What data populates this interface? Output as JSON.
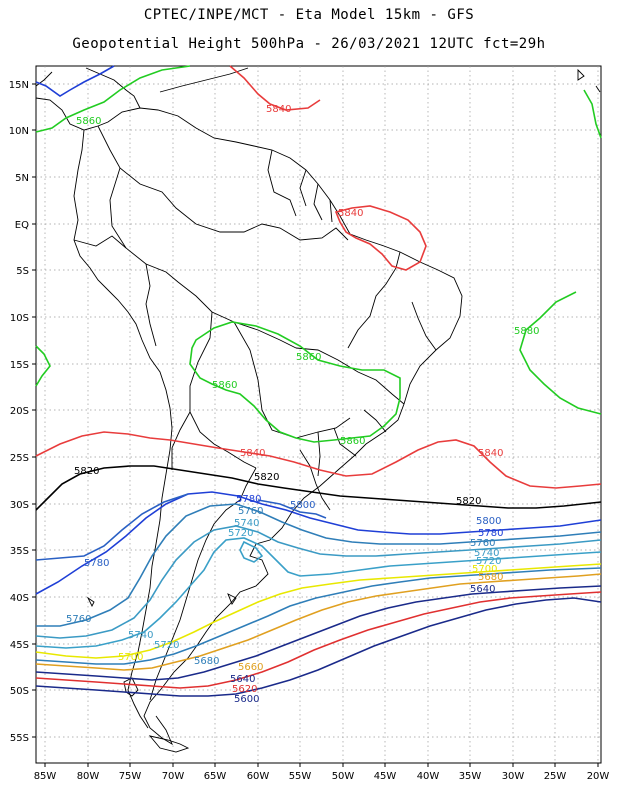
{
  "header": {
    "line1": "CPTEC/INPE/MCT -  Eta Model 15km - GFS",
    "line2": "Geopotential Height 500hPa - 26/03/2021 12UTC fct=29h"
  },
  "axes": {
    "lat_labels": [
      "15N",
      "10N",
      "5N",
      "EQ",
      "5S",
      "10S",
      "15S",
      "20S",
      "25S",
      "30S",
      "35S",
      "40S",
      "45S",
      "50S",
      "55S"
    ],
    "lon_labels": [
      "85W",
      "80W",
      "75W",
      "70W",
      "65W",
      "60W",
      "55W",
      "50W",
      "45W",
      "40W",
      "35W",
      "30W",
      "25W",
      "20W"
    ]
  },
  "colors": {
    "c5880": "#22cc22",
    "c5840": "#e83c3c",
    "c5820": "#000000",
    "c5800": "#1f3fd6",
    "c5780": "#2a60c4",
    "c5760": "#2f7eb8",
    "c5740": "#3b9ac4",
    "c5720": "#3aa0c8",
    "c5700": "#e8e800",
    "c5680": "#e0a020",
    "c5640": "#e03030",
    "c5600": "#1a2a8a"
  },
  "contour_labels": [
    {
      "id": "l5860a",
      "text": "5860",
      "color": "c5880"
    },
    {
      "id": "l5840a",
      "text": "5840",
      "color": "c5840"
    },
    {
      "id": "l5840b",
      "text": "5840",
      "color": "c5840"
    },
    {
      "id": "l5880a",
      "text": "5880",
      "color": "c5880"
    },
    {
      "id": "l5860b",
      "text": "5860",
      "color": "c5880"
    },
    {
      "id": "l5860c",
      "text": "5860",
      "color": "c5880"
    },
    {
      "id": "l5860d",
      "text": "5860",
      "color": "c5880"
    },
    {
      "id": "l5840c",
      "text": "5840",
      "color": "c5840"
    },
    {
      "id": "l5840d",
      "text": "5840",
      "color": "c5840"
    },
    {
      "id": "l5820a",
      "text": "5820",
      "color": "c5820"
    },
    {
      "id": "l5820b",
      "text": "5820",
      "color": "c5820"
    },
    {
      "id": "l5820c",
      "text": "5820",
      "color": "c5820"
    },
    {
      "id": "l5780a",
      "text": "5780",
      "color": "c5800"
    },
    {
      "id": "l5800a",
      "text": "5800",
      "color": "c5780"
    },
    {
      "id": "l5760a",
      "text": "5760",
      "color": "c5760"
    },
    {
      "id": "l5740a",
      "text": "5740",
      "color": "c5740"
    },
    {
      "id": "l5720a",
      "text": "5720",
      "color": "c5720"
    },
    {
      "id": "l5780b",
      "text": "5780",
      "color": "c5780"
    },
    {
      "id": "l5800b",
      "text": "5800",
      "color": "c5780"
    },
    {
      "id": "l5780c",
      "text": "5780",
      "color": "c5800"
    },
    {
      "id": "l5760b",
      "text": "5760",
      "color": "c5760"
    },
    {
      "id": "l5740b",
      "text": "5740",
      "color": "c5740"
    },
    {
      "id": "l5720b",
      "text": "5720",
      "color": "c5720"
    },
    {
      "id": "l5700a",
      "text": "5700",
      "color": "c5700"
    },
    {
      "id": "l5680a",
      "text": "5680",
      "color": "c5680"
    },
    {
      "id": "l5640a",
      "text": "5640",
      "color": "c5600"
    },
    {
      "id": "l5760c",
      "text": "5760",
      "color": "c5760"
    },
    {
      "id": "l5740c",
      "text": "5740",
      "color": "c5740"
    },
    {
      "id": "l5720c",
      "text": "5720",
      "color": "c5720"
    },
    {
      "id": "l5700b",
      "text": "5700",
      "color": "c5700"
    },
    {
      "id": "l5680b",
      "text": "5680",
      "color": "c5760"
    },
    {
      "id": "l5660a",
      "text": "5660",
      "color": "c5680"
    },
    {
      "id": "l5640b",
      "text": "5640",
      "color": "c5600"
    },
    {
      "id": "l5620a",
      "text": "5620",
      "color": "c5640"
    },
    {
      "id": "l5600a",
      "text": "5600",
      "color": "c5600"
    }
  ]
}
